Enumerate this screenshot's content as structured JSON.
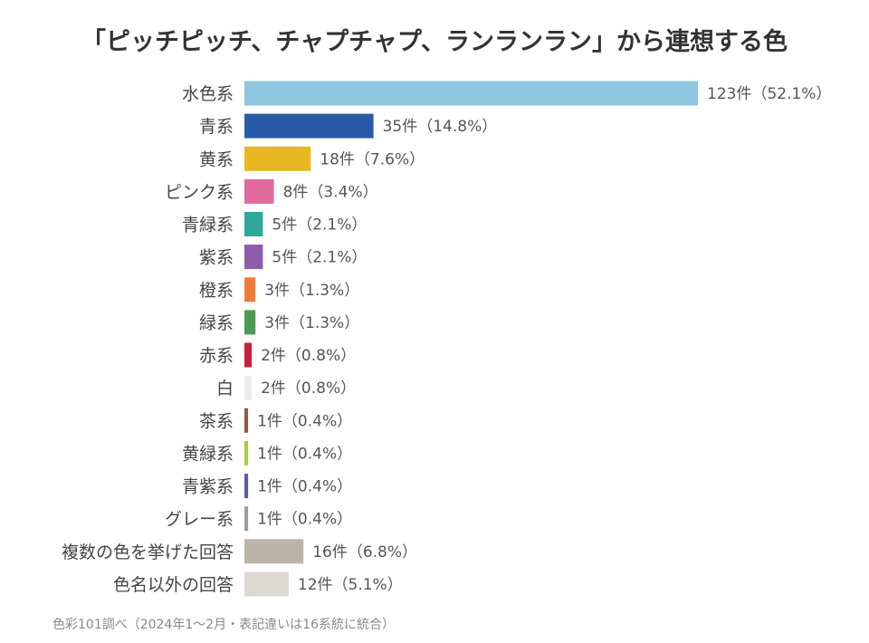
{
  "chart_data": {
    "type": "bar",
    "orientation": "horizontal",
    "title": "「ピッチピッチ、チャプチャプ、ランランラン」から連想する色",
    "categories": [
      "水色系",
      "青系",
      "黄系",
      "ピンク系",
      "青緑系",
      "紫系",
      "橙系",
      "緑系",
      "赤系",
      "白",
      "茶系",
      "黄緑系",
      "青紫系",
      "グレー系",
      "複数の色を挙げた回答",
      "色名以外の回答"
    ],
    "values": [
      123,
      35,
      18,
      8,
      5,
      5,
      3,
      3,
      2,
      2,
      1,
      1,
      1,
      1,
      16,
      12
    ],
    "value_labels": [
      "123件（52.1%）",
      "35件（14.8%）",
      "18件（7.6%）",
      "8件（3.4%）",
      "5件（2.1%）",
      "5件（2.1%）",
      "3件（1.3%）",
      "3件（1.3%）",
      "2件（0.8%）",
      "2件（0.8%）",
      "1件（0.4%）",
      "1件（0.4%）",
      "1件（0.4%）",
      "1件（0.4%）",
      "16件（6.8%）",
      "12件（5.1%）"
    ],
    "colors": [
      "#8ec6e0",
      "#2b5ba8",
      "#e8b822",
      "#e06a9e",
      "#2ea89a",
      "#8c5ca8",
      "#f07c3c",
      "#4c9a54",
      "#c8203c",
      "#eeece8",
      "#8c5c3c",
      "#a8cc44",
      "#5c5ca0",
      "#9c9c9c",
      "#bcb4a8",
      "#dcd8d2"
    ],
    "xlim": [
      0,
      123
    ],
    "grid": false,
    "legend": "none",
    "xlabel": "",
    "ylabel": ""
  },
  "source_note": "色彩101調べ（2024年1〜2月・表記違いは16系統に統合）"
}
